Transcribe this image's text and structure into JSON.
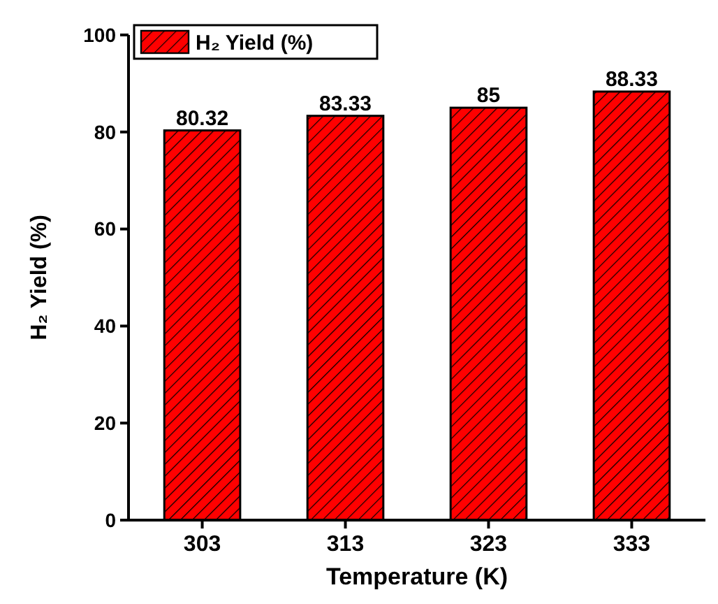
{
  "chart_data": {
    "type": "bar",
    "xlabel": "Temperature (K)",
    "ylabel": "H₂ Yield (%)",
    "categories": [
      "303",
      "313",
      "323",
      "333"
    ],
    "series": [
      {
        "name": "H₂ Yield (%)",
        "color": "#ff0000",
        "values": [
          80.32,
          83.33,
          85,
          88.33
        ]
      }
    ],
    "ylim": [
      0,
      100
    ],
    "yticks": [
      0,
      20,
      40,
      60,
      80,
      100
    ],
    "data_labels": true,
    "legend": "top left",
    "grid": false
  }
}
